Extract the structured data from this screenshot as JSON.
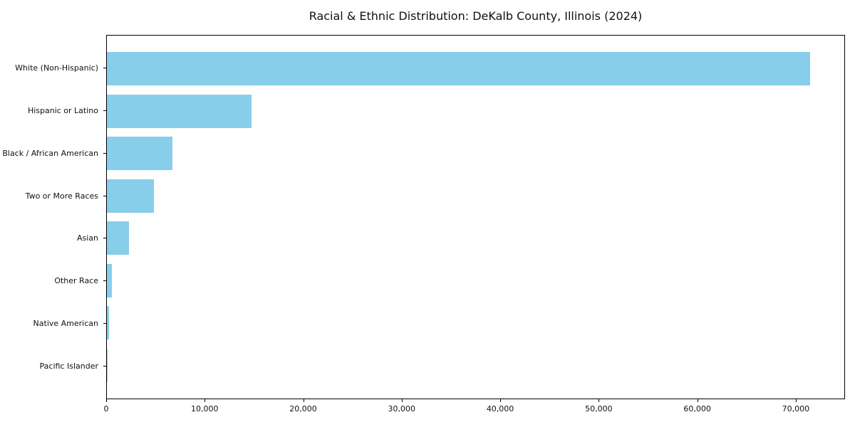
{
  "chart_data": {
    "type": "bar",
    "orientation": "horizontal",
    "title": "Racial & Ethnic Distribution: DeKalb County, Illinois (2024)",
    "xlabel": "",
    "ylabel": "",
    "categories": [
      "White (Non-Hispanic)",
      "Hispanic or Latino",
      "Black / African American",
      "Two or More Races",
      "Asian",
      "Other Race",
      "Native American",
      "Pacific Islander"
    ],
    "values": [
      71500,
      14700,
      6700,
      4800,
      2250,
      500,
      220,
      30
    ],
    "xlim": [
      0,
      75000
    ],
    "x_ticks": [
      0,
      10000,
      20000,
      30000,
      40000,
      50000,
      60000,
      70000
    ],
    "x_tick_labels": [
      "0",
      "10,000",
      "20,000",
      "30,000",
      "40,000",
      "50,000",
      "60,000",
      "70,000"
    ],
    "bar_color": "#87CEEB",
    "spine_color": "#000000",
    "grid": false,
    "legend": "none"
  }
}
